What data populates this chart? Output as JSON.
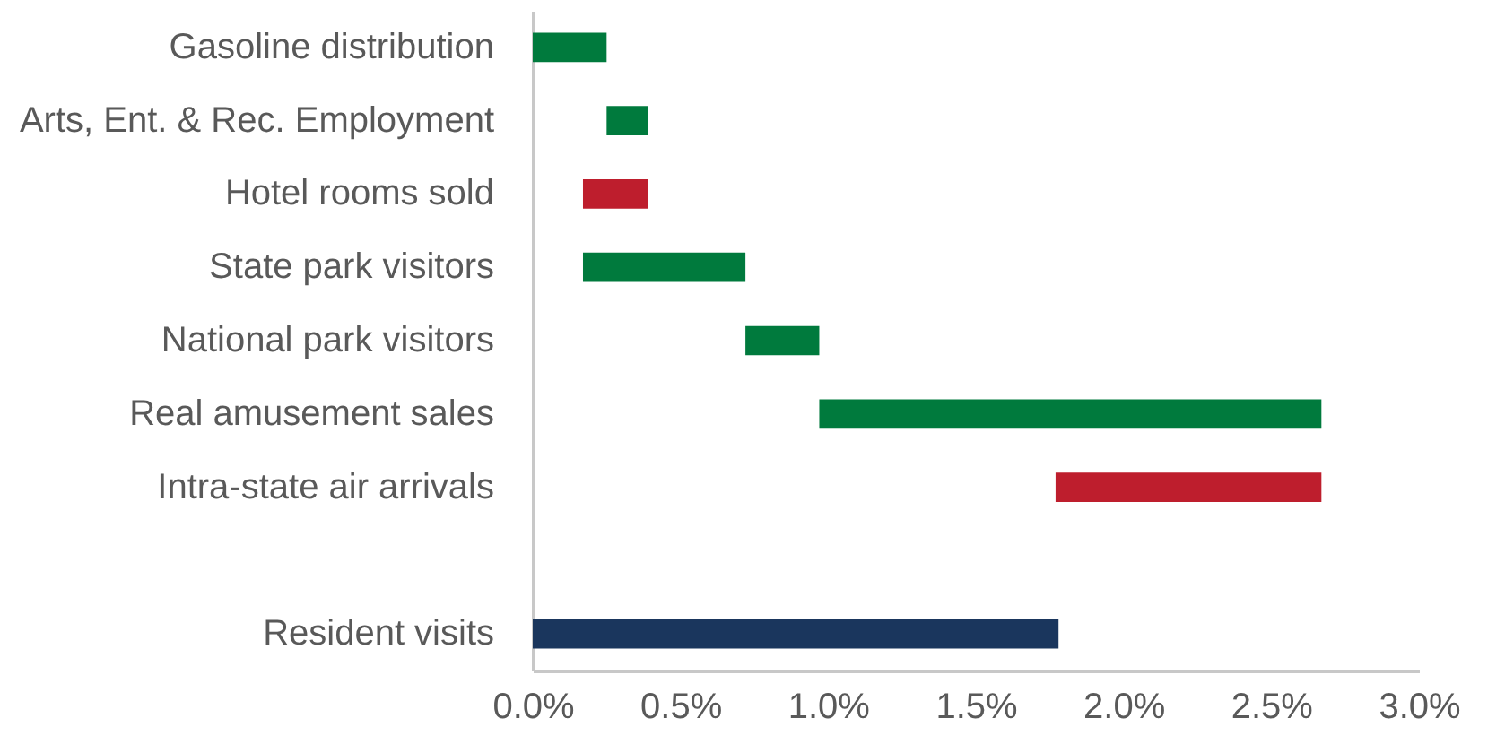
{
  "chart_data": {
    "type": "bar",
    "orientation": "horizontal",
    "categories": [
      "Gasoline distribution",
      "Arts, Ent. & Rec. Employment",
      "Hotel rooms sold",
      "State park visitors",
      "National park visitors",
      "Real amusement sales",
      "Intra-state air arrivals",
      null,
      "Resident visits"
    ],
    "base": [
      0,
      0.25,
      0.39,
      0.17,
      0.72,
      0.97,
      2.67,
      null,
      0
    ],
    "values": [
      0.25,
      0.14,
      -0.22,
      0.55,
      0.25,
      1.7,
      -0.9,
      null,
      1.78
    ],
    "colors": [
      "#007a3d",
      "#007a3d",
      "#be1e2d",
      "#007a3d",
      "#007a3d",
      "#007a3d",
      "#be1e2d",
      null,
      "#1a365d"
    ],
    "xlim": [
      0,
      3.0
    ],
    "xticks": [
      {
        "value": 0,
        "label": "0.0%"
      },
      {
        "value": 0.5,
        "label": "0.5%"
      },
      {
        "value": 1.0,
        "label": "1.0%"
      },
      {
        "value": 1.5,
        "label": "1.5%"
      },
      {
        "value": 2.0,
        "label": "2.0%"
      },
      {
        "value": 2.5,
        "label": "2.5%"
      },
      {
        "value": 3.0,
        "label": "3.0%"
      }
    ],
    "grid": false
  }
}
